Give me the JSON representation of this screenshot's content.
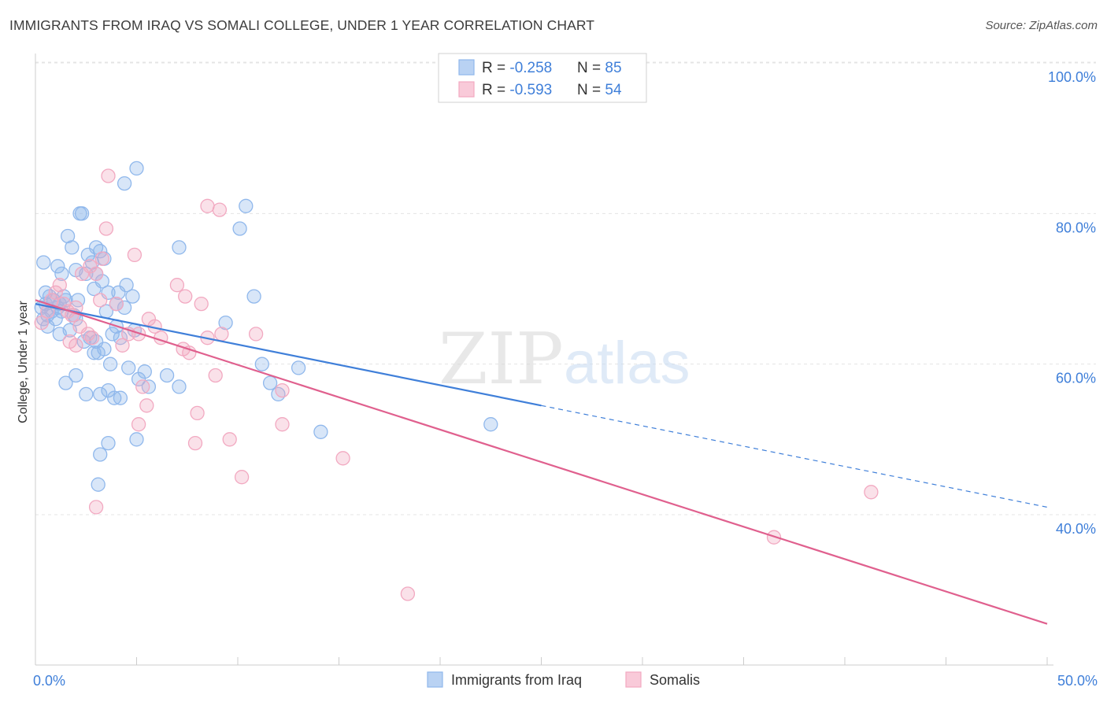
{
  "chart_data": {
    "type": "scatter",
    "title": "IMMIGRANTS FROM IRAQ VS SOMALI COLLEGE, UNDER 1 YEAR CORRELATION CHART",
    "source": "Source: ZipAtlas.com",
    "xlabel": "",
    "ylabel": "College, Under 1 year",
    "xlim": [
      0,
      50
    ],
    "ylim": [
      20,
      105
    ],
    "x_tick_labels": [
      "0.0%",
      "50.0%"
    ],
    "y_ticks": [
      40,
      60,
      80,
      100
    ],
    "y_tick_labels": [
      "40.0%",
      "60.0%",
      "80.0%",
      "100.0%"
    ],
    "grid": true,
    "legend_placement": "top-center",
    "bottom_legend_placement": "bottom-center",
    "watermark": "ZIPatlas",
    "series": [
      {
        "name": "Immigrants from Iraq",
        "color": "#90b8ec",
        "line_color": "#3f7fd9",
        "r_label": "R = ",
        "r_value": "-0.258",
        "n_label": "N = ",
        "n_value": "85",
        "trend": {
          "x_start": 0,
          "y_start": 68.0,
          "x_solid_end": 25,
          "y_solid_end": 54.5,
          "x_end": 50,
          "y_end": 41.0
        },
        "points": [
          [
            0.3,
            67.5
          ],
          [
            0.4,
            66.0
          ],
          [
            0.5,
            68.0
          ],
          [
            0.6,
            66.5
          ],
          [
            0.5,
            69.5
          ],
          [
            0.7,
            69.0
          ],
          [
            0.8,
            67.0
          ],
          [
            0.9,
            68.5
          ],
          [
            1.0,
            66.0
          ],
          [
            1.1,
            67.5
          ],
          [
            1.2,
            68.0
          ],
          [
            1.3,
            67.0
          ],
          [
            1.4,
            69.0
          ],
          [
            1.5,
            68.5
          ],
          [
            0.4,
            73.5
          ],
          [
            1.1,
            73.0
          ],
          [
            1.3,
            72.0
          ],
          [
            1.6,
            77.0
          ],
          [
            1.8,
            75.5
          ],
          [
            2.0,
            72.5
          ],
          [
            2.2,
            80.0
          ],
          [
            2.3,
            80.0
          ],
          [
            2.6,
            74.5
          ],
          [
            2.8,
            73.5
          ],
          [
            3.0,
            75.5
          ],
          [
            3.2,
            75.0
          ],
          [
            3.4,
            74.0
          ],
          [
            3.3,
            71.0
          ],
          [
            2.5,
            72.0
          ],
          [
            2.9,
            70.0
          ],
          [
            3.0,
            72.0
          ],
          [
            3.6,
            69.5
          ],
          [
            4.1,
            69.5
          ],
          [
            4.5,
            70.5
          ],
          [
            4.8,
            69.0
          ],
          [
            4.0,
            68.0
          ],
          [
            4.4,
            67.5
          ],
          [
            3.5,
            67.0
          ],
          [
            1.9,
            66.5
          ],
          [
            2.1,
            68.5
          ],
          [
            2.0,
            66.0
          ],
          [
            2.7,
            63.5
          ],
          [
            1.7,
            64.5
          ],
          [
            1.2,
            64.0
          ],
          [
            2.4,
            63.0
          ],
          [
            3.0,
            63.0
          ],
          [
            3.4,
            62.0
          ],
          [
            3.8,
            64.0
          ],
          [
            2.9,
            61.5
          ],
          [
            3.1,
            61.5
          ],
          [
            4.0,
            65.0
          ],
          [
            4.2,
            63.5
          ],
          [
            4.9,
            64.5
          ],
          [
            3.7,
            60.0
          ],
          [
            4.6,
            59.5
          ],
          [
            2.0,
            58.5
          ],
          [
            1.5,
            57.5
          ],
          [
            2.5,
            56.0
          ],
          [
            3.6,
            56.5
          ],
          [
            3.9,
            55.5
          ],
          [
            4.2,
            55.5
          ],
          [
            3.2,
            56.0
          ],
          [
            5.1,
            58.0
          ],
          [
            5.4,
            59.0
          ],
          [
            5.6,
            57.0
          ],
          [
            3.6,
            49.5
          ],
          [
            5.0,
            50.0
          ],
          [
            3.2,
            48.0
          ],
          [
            3.1,
            44.0
          ],
          [
            5.0,
            86.0
          ],
          [
            4.4,
            84.0
          ],
          [
            7.1,
            75.5
          ],
          [
            10.4,
            81.0
          ],
          [
            10.1,
            78.0
          ],
          [
            10.8,
            69.0
          ],
          [
            9.4,
            65.5
          ],
          [
            7.1,
            57.0
          ],
          [
            11.2,
            60.0
          ],
          [
            11.6,
            57.5
          ],
          [
            12.0,
            56.0
          ],
          [
            13.0,
            59.5
          ],
          [
            14.1,
            51.0
          ],
          [
            22.5,
            52.0
          ],
          [
            6.5,
            58.5
          ],
          [
            0.6,
            65.0
          ]
        ]
      },
      {
        "name": "Somalis",
        "color": "#f2a9c1",
        "line_color": "#e0608e",
        "r_label": "R = ",
        "r_value": "-0.593",
        "n_label": "N = ",
        "n_value": "54",
        "trend": {
          "x_start": 0,
          "y_start": 68.5,
          "x_solid_end": 50,
          "y_solid_end": 25.5,
          "x_end": 50,
          "y_end": 25.5
        },
        "points": [
          [
            0.3,
            65.5
          ],
          [
            0.6,
            67.0
          ],
          [
            0.8,
            68.5
          ],
          [
            1.0,
            69.5
          ],
          [
            1.2,
            70.5
          ],
          [
            1.4,
            68.0
          ],
          [
            1.6,
            67.0
          ],
          [
            1.8,
            66.5
          ],
          [
            2.0,
            67.5
          ],
          [
            1.7,
            63.0
          ],
          [
            2.0,
            62.5
          ],
          [
            2.2,
            65.0
          ],
          [
            2.6,
            64.0
          ],
          [
            2.8,
            63.5
          ],
          [
            2.3,
            72.0
          ],
          [
            2.7,
            73.0
          ],
          [
            3.0,
            72.0
          ],
          [
            3.3,
            74.0
          ],
          [
            3.5,
            78.0
          ],
          [
            3.6,
            85.0
          ],
          [
            4.0,
            68.0
          ],
          [
            4.3,
            62.5
          ],
          [
            4.6,
            64.0
          ],
          [
            3.2,
            68.5
          ],
          [
            4.9,
            74.5
          ],
          [
            5.1,
            64.0
          ],
          [
            5.6,
            66.0
          ],
          [
            5.9,
            65.0
          ],
          [
            6.2,
            63.5
          ],
          [
            5.3,
            57.0
          ],
          [
            5.1,
            52.0
          ],
          [
            5.5,
            54.5
          ],
          [
            7.0,
            70.5
          ],
          [
            7.4,
            69.0
          ],
          [
            8.2,
            68.0
          ],
          [
            7.3,
            62.0
          ],
          [
            7.6,
            61.5
          ],
          [
            8.5,
            63.5
          ],
          [
            8.0,
            53.5
          ],
          [
            7.9,
            49.5
          ],
          [
            8.5,
            81.0
          ],
          [
            9.1,
            80.5
          ],
          [
            9.2,
            64.0
          ],
          [
            10.9,
            64.0
          ],
          [
            8.9,
            58.5
          ],
          [
            9.6,
            50.0
          ],
          [
            10.2,
            45.0
          ],
          [
            12.2,
            56.5
          ],
          [
            12.2,
            52.0
          ],
          [
            15.2,
            47.5
          ],
          [
            18.4,
            29.5
          ],
          [
            36.5,
            37.0
          ],
          [
            41.3,
            43.0
          ],
          [
            3.0,
            41.0
          ]
        ]
      }
    ]
  }
}
